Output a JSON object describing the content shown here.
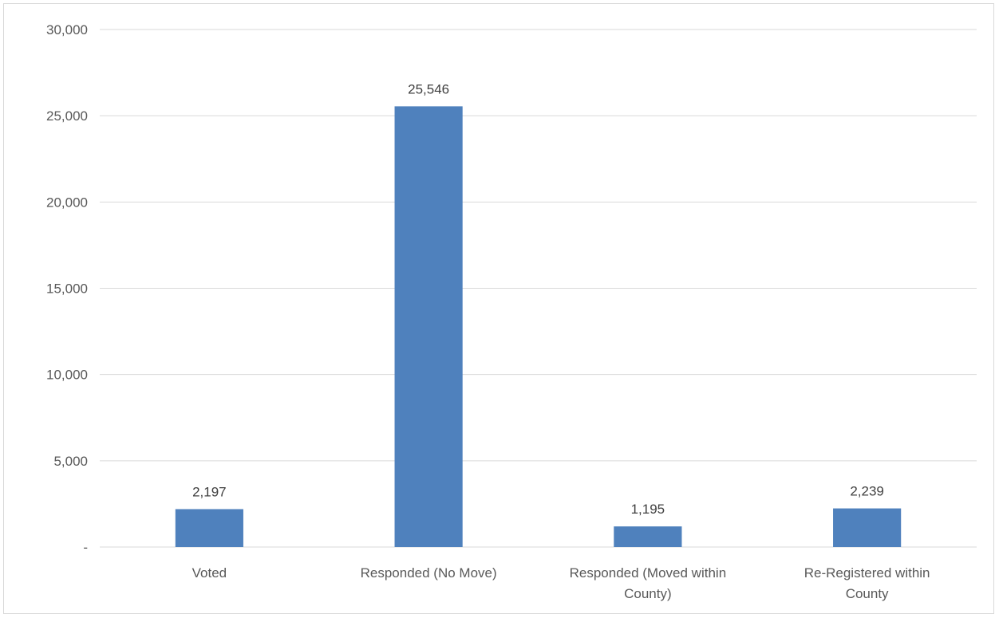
{
  "chart_data": {
    "type": "bar",
    "title": "",
    "xlabel": "",
    "ylabel": "",
    "categories": [
      [
        "Voted"
      ],
      [
        "Responded (No Move)"
      ],
      [
        "Responded (Moved within",
        "County)"
      ],
      [
        "Re-Registered within",
        "County"
      ]
    ],
    "values": [
      2197,
      25546,
      1195,
      2239
    ],
    "value_labels": [
      "2,197",
      "25,546",
      "1,195",
      "2,239"
    ],
    "ylim": [
      0,
      30000
    ],
    "yticks": [
      0,
      5000,
      10000,
      15000,
      20000,
      25000,
      30000
    ],
    "ytick_labels": [
      "-",
      "5,000",
      "10,000",
      "15,000",
      "20,000",
      "25,000",
      "30,000"
    ],
    "grid": true,
    "legend": "none",
    "colors": {
      "bar": "#4f81bd",
      "grid": "#d9d9d9"
    }
  }
}
